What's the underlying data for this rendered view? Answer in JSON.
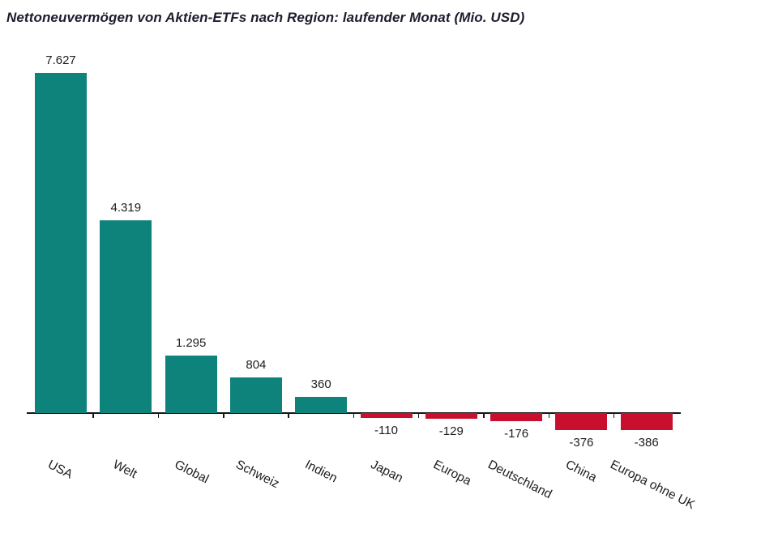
{
  "title": "Nettoneuvermögen von Aktien-ETFs nach Region: laufender Monat (Mio. USD)",
  "chart_data": {
    "type": "bar",
    "title": "Nettoneuvermögen von Aktien-ETFs nach Region: laufender Monat (Mio. USD)",
    "categories": [
      "USA",
      "Welt",
      "Global",
      "Schweiz",
      "Indien",
      "Japan",
      "Europa",
      "Deutschland",
      "China",
      "Europa ohne UK"
    ],
    "values": [
      7627,
      4319,
      1295,
      804,
      360,
      -110,
      -129,
      -176,
      -376,
      -386
    ],
    "value_labels": [
      "7.627",
      "4.319",
      "1.295",
      "804",
      "360",
      "-110",
      "-129",
      "-176",
      "-376",
      "-386"
    ],
    "unit": "Mio. USD",
    "xlabel": "",
    "ylabel": "",
    "ylim": [
      -500,
      8000
    ],
    "grid": false,
    "legend": false,
    "bar_label_position": "outside-end",
    "x_tick_rotation_deg": 27,
    "colors": {
      "positive": "#0E837C",
      "negative": "#C8102E",
      "axis": "#161616",
      "text": "#1d1d1d",
      "title": "#1c1c2e"
    }
  }
}
